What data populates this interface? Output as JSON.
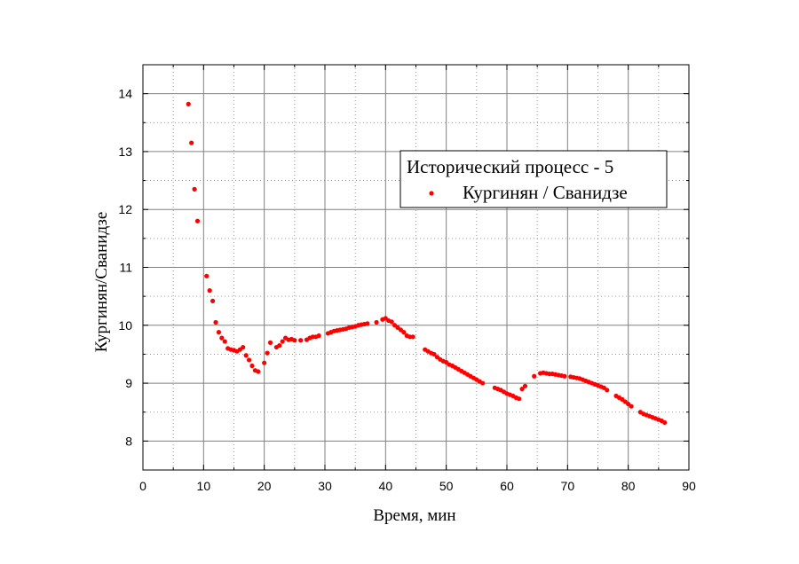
{
  "chart_data": {
    "type": "scatter",
    "xlabel": "Время, мин",
    "ylabel": "Кургинян/Сванидзе",
    "xlim": [
      0,
      90
    ],
    "ylim": [
      7.5,
      14.5
    ],
    "x_ticks": [
      0,
      10,
      20,
      30,
      40,
      50,
      60,
      70,
      80,
      90
    ],
    "y_ticks": [
      8,
      9,
      10,
      11,
      12,
      13,
      14
    ],
    "grid": true,
    "legend": {
      "title": "Исторический процесс - 5",
      "placement": "top-right"
    },
    "colors": {
      "series": "#ff0000",
      "grid": "#808080",
      "axis": "#000000"
    },
    "series": [
      {
        "name": "Кургинян / Сванидзе",
        "x": [
          7.5,
          8.0,
          8.5,
          9.0,
          10.5,
          11.0,
          11.5,
          12.0,
          12.5,
          13.0,
          13.5,
          14.0,
          14.5,
          15.0,
          15.5,
          16.0,
          16.5,
          17.0,
          17.5,
          18.0,
          18.5,
          19.0,
          20.0,
          20.5,
          21.0,
          22.0,
          22.5,
          23.0,
          23.5,
          24.0,
          24.5,
          25.0,
          26.0,
          27.0,
          27.5,
          28.0,
          28.5,
          29.0,
          30.5,
          31.0,
          31.5,
          32.0,
          32.5,
          33.0,
          33.5,
          34.0,
          34.5,
          35.0,
          35.5,
          36.0,
          36.5,
          37.0,
          38.5,
          39.5,
          40.0,
          40.5,
          41.0,
          41.5,
          42.0,
          42.5,
          43.0,
          43.5,
          44.0,
          44.5,
          46.5,
          47.0,
          47.5,
          48.0,
          48.5,
          49.0,
          49.5,
          50.0,
          50.5,
          51.0,
          51.5,
          52.0,
          52.5,
          53.0,
          53.5,
          54.0,
          54.5,
          55.0,
          55.5,
          56.0,
          58.0,
          58.5,
          59.0,
          59.5,
          60.0,
          60.5,
          61.0,
          61.5,
          62.0,
          62.5,
          63.0,
          64.5,
          65.5,
          66.0,
          66.5,
          67.0,
          67.5,
          68.0,
          68.5,
          69.0,
          69.5,
          70.5,
          71.0,
          71.5,
          72.0,
          72.5,
          73.0,
          73.5,
          74.0,
          74.5,
          75.0,
          75.5,
          76.0,
          76.5,
          78.0,
          78.5,
          79.0,
          79.5,
          80.0,
          80.5,
          82.0,
          82.5,
          83.0,
          83.5,
          84.0,
          84.5,
          85.0,
          85.5,
          86.0
        ],
        "y": [
          13.82,
          13.15,
          12.35,
          11.8,
          10.85,
          10.6,
          10.42,
          10.05,
          9.88,
          9.78,
          9.72,
          9.6,
          9.58,
          9.57,
          9.55,
          9.58,
          9.62,
          9.48,
          9.4,
          9.3,
          9.22,
          9.2,
          9.35,
          9.52,
          9.7,
          9.62,
          9.65,
          9.72,
          9.78,
          9.75,
          9.76,
          9.74,
          9.74,
          9.75,
          9.78,
          9.8,
          9.8,
          9.82,
          9.86,
          9.88,
          9.9,
          9.91,
          9.92,
          9.93,
          9.94,
          9.96,
          9.97,
          9.98,
          10.0,
          10.01,
          10.02,
          10.03,
          10.05,
          10.1,
          10.12,
          10.08,
          10.06,
          10.0,
          9.96,
          9.92,
          9.88,
          9.82,
          9.8,
          9.8,
          9.58,
          9.55,
          9.52,
          9.5,
          9.45,
          9.41,
          9.38,
          9.36,
          9.32,
          9.3,
          9.27,
          9.24,
          9.21,
          9.18,
          9.15,
          9.12,
          9.09,
          9.06,
          9.03,
          9.0,
          8.92,
          8.9,
          8.88,
          8.85,
          8.82,
          8.8,
          8.78,
          8.75,
          8.73,
          8.9,
          8.95,
          9.12,
          9.17,
          9.18,
          9.17,
          9.16,
          9.16,
          9.15,
          9.14,
          9.13,
          9.12,
          9.11,
          9.1,
          9.09,
          9.08,
          9.06,
          9.04,
          9.02,
          9.0,
          8.98,
          8.96,
          8.94,
          8.92,
          8.88,
          8.78,
          8.75,
          8.72,
          8.68,
          8.64,
          8.6,
          8.5,
          8.47,
          8.45,
          8.43,
          8.41,
          8.39,
          8.37,
          8.35,
          8.32
        ]
      }
    ]
  }
}
